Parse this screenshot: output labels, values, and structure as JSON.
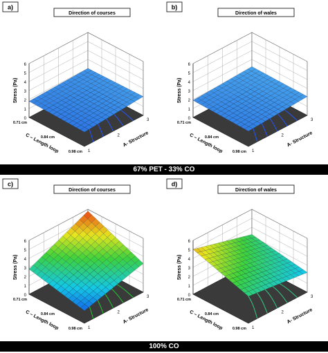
{
  "dividers": [
    "67% PET - 33% CO",
    "100% CO"
  ],
  "chart_data": [
    {
      "type": "surface",
      "panel_label": "a)",
      "title": "Direction of courses",
      "zlabel": "Stress (Pa)",
      "xlabel": "A- Structure",
      "ylabel": "C – Length loop",
      "z_ticks": [
        "0",
        "1",
        "2",
        "3",
        "4",
        "5",
        "6"
      ],
      "x_ticks": [
        "1",
        "2",
        "3"
      ],
      "y_ticks": [
        "0.71 cm",
        "0.84 cm",
        "0.98 cm"
      ],
      "zlim": [
        0,
        6
      ],
      "surface": {
        "z_at_x1_y071": 1.8,
        "z_at_x3_y071": 2.0,
        "z_at_x1_y098": 1.6,
        "z_at_x3_y098": 2.1
      },
      "colorscale": "blue",
      "contour_color": "#2255ff"
    },
    {
      "type": "surface",
      "panel_label": "b)",
      "title": "Direction of wales",
      "zlabel": "Stress (Pa)",
      "xlabel": "A- Structure",
      "ylabel": "C – Length loop",
      "z_ticks": [
        "0",
        "1",
        "2",
        "3",
        "4",
        "5",
        "6"
      ],
      "x_ticks": [
        "1",
        "2",
        "3"
      ],
      "y_ticks": [
        "0.71 cm",
        "0.84 cm",
        "0.98 cm"
      ],
      "zlim": [
        0,
        6
      ],
      "surface": {
        "z_at_x1_y071": 1.9,
        "z_at_x3_y071": 2.2,
        "z_at_x1_y098": 1.7,
        "z_at_x3_y098": 2.1
      },
      "colorscale": "blue",
      "contour_color": "#2255ff"
    },
    {
      "type": "surface",
      "panel_label": "c)",
      "title": "Direction of courses",
      "zlabel": "Stress (Pa)",
      "xlabel": "A- Structure",
      "ylabel": "C – Length loop",
      "z_ticks": [
        "0",
        "1",
        "2",
        "3",
        "4",
        "5",
        "6"
      ],
      "x_ticks": [
        "1",
        "2",
        "3"
      ],
      "y_ticks": [
        "0.71 cm",
        "0.84 cm",
        "0.98 cm"
      ],
      "zlim": [
        0,
        6
      ],
      "surface": {
        "z_at_x1_y071": 2.8,
        "z_at_x3_y071": 5.8,
        "z_at_x1_y098": 1.4,
        "z_at_x3_y098": 3.2
      },
      "colorscale": "rainbow",
      "contour_color": "#22cc33"
    },
    {
      "type": "surface",
      "panel_label": "d)",
      "title": "Direction of wales",
      "zlabel": "Stress (Pa)",
      "xlabel": "A- Structure",
      "ylabel": "C – Length loop",
      "z_ticks": [
        "0",
        "1",
        "2",
        "3",
        "4",
        "5",
        "6"
      ],
      "x_ticks": [
        "1",
        "2",
        "3"
      ],
      "y_ticks": [
        "0.71 cm",
        "0.84 cm",
        "0.98 cm"
      ],
      "zlim": [
        0,
        6
      ],
      "surface": {
        "z_at_x1_y071": 5.0,
        "z_at_x3_y071": 3.2,
        "z_at_x1_y098": 3.0,
        "z_at_x3_y098": 2.2
      },
      "colorscale": "rainbow",
      "contour_color": "#33cc88"
    }
  ]
}
